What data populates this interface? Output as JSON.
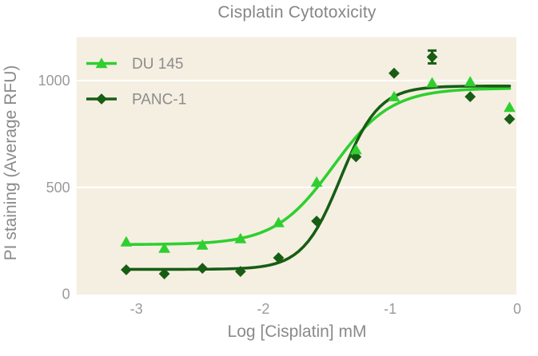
{
  "title": "Cisplatin Cytotoxicity",
  "chart_data": {
    "type": "scatter",
    "title": "Cisplatin Cytotoxicity",
    "xlabel": "Log [Cisplatin] mM",
    "ylabel": "PI staining (Average RFU)",
    "xlim": [
      -3.472,
      -0.006
    ],
    "ylim": [
      -2,
      1204
    ],
    "xticks": [
      -3,
      -2,
      -1,
      0
    ],
    "yticks": [
      0,
      500,
      1000
    ],
    "grid": "horizontal white gridlines on beige plot background",
    "plot_bg_color": "#f5efe2",
    "outer_bg_color": "#ffffff",
    "gridline_color": "#ffffff",
    "text_colors": {
      "title": "#868686",
      "axis_titles": "#8a8a8a",
      "ticks": "#9a9a9a",
      "legend": "#8c8c8c"
    },
    "legend_position": "top-left inside plot",
    "x": [
      -3.08,
      -2.78,
      -2.48,
      -2.18,
      -1.88,
      -1.58,
      -1.27,
      -0.97,
      -0.67,
      -0.37,
      -0.06
    ],
    "series": [
      {
        "name": "DU 145",
        "marker": "triangle",
        "color": "#2fcf2f",
        "values": [
          245,
          215,
          230,
          260,
          335,
          525,
          677,
          925,
          990,
          995,
          875
        ],
        "fit": {
          "bottom": 232,
          "top": 965,
          "logec50": -1.45,
          "hill": 1.9
        },
        "error_bars": []
      },
      {
        "name": "PANC-1",
        "marker": "diamond",
        "color": "#175d13",
        "values": [
          114,
          95,
          121,
          106,
          170,
          342,
          643,
          1035,
          1111,
          925,
          820
        ],
        "fit": {
          "bottom": 116,
          "top": 975,
          "logec50": -1.39,
          "hill": 2.9
        },
        "error_bars": [
          {
            "x_index": 8,
            "plus": 30,
            "minus": 30
          }
        ]
      }
    ]
  }
}
